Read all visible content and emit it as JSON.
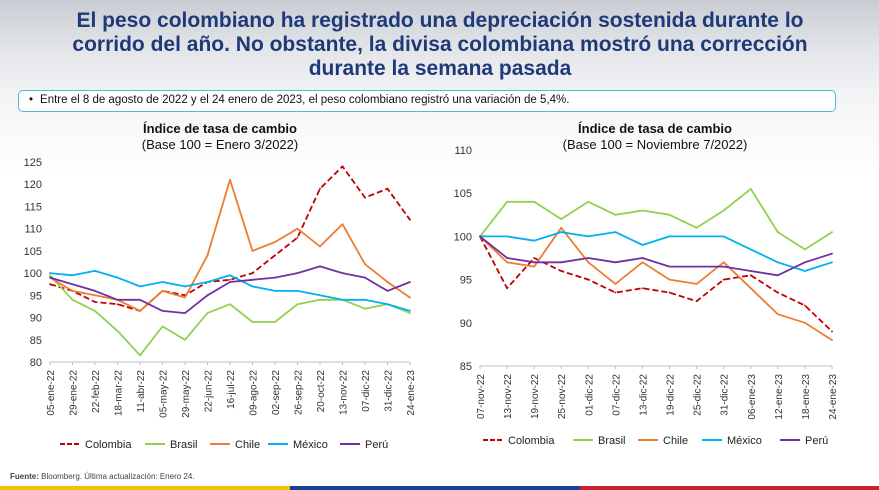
{
  "slide": {
    "headline": "El peso colombiano ha registrado una depreciación sostenida durante lo corrido del año. No obstante, la divisa colombiana mostró una corrección durante la semana pasada",
    "callout": "Entre el 8 de agosto de 2022 y el 24 enero de 2023, el peso colombiano registró una variación de 5,4%.",
    "footer_label": "Fuente:",
    "footer_text": "Bloomberg. Última actualización: Enero 24.",
    "colors": {
      "headline": "#1f3a78",
      "callout_border": "#56b7d6",
      "stripe_yellow": "#f2c200",
      "stripe_blue": "#1d3f8f",
      "stripe_red": "#cc1f2d"
    }
  },
  "chart_data": [
    {
      "type": "line",
      "title": "Índice de tasa de cambio",
      "subtitle": "(Base 100 = Enero 3/2022)",
      "ylim": [
        80,
        125
      ],
      "yticks": [
        80,
        85,
        90,
        95,
        100,
        105,
        110,
        115,
        120,
        125
      ],
      "categories": [
        "05-ene-22",
        "29-ene-22",
        "22-feb-22",
        "18-mar-22",
        "11-abr-22",
        "05-may-22",
        "29-may-22",
        "22-jun-22",
        "16-jul-22",
        "09-ago-22",
        "02-sep-22",
        "26-sep-22",
        "20-oct-22",
        "13-nov-22",
        "07-dic-22",
        "31-dic-22",
        "24-ene-23"
      ],
      "legend": [
        "Colombia",
        "Brasil",
        "Chile",
        "México",
        "Perú"
      ],
      "series": [
        {
          "name": "Colombia",
          "color": "#c00000",
          "dash": "6,3",
          "values": [
            97.5,
            96,
            93.5,
            93,
            91.5,
            96,
            95,
            98,
            98.5,
            100,
            104,
            108,
            119,
            124,
            117,
            119,
            112
          ]
        },
        {
          "name": "Brasil",
          "color": "#92d050",
          "dash": "",
          "values": [
            99.5,
            94,
            91.5,
            87,
            81.5,
            88,
            85,
            91,
            93,
            89,
            89,
            93,
            94,
            94,
            92,
            93,
            91
          ]
        },
        {
          "name": "Chile",
          "color": "#ed7d31",
          "dash": "",
          "values": [
            99,
            96,
            95,
            94,
            91.5,
            96,
            94.5,
            104,
            121,
            105,
            107,
            110,
            106,
            111,
            102,
            98,
            94.5
          ]
        },
        {
          "name": "México",
          "color": "#00b0f0",
          "dash": "",
          "values": [
            100,
            99.5,
            100.5,
            99,
            97,
            98,
            97,
            98,
            99.5,
            97,
            96,
            96,
            95,
            94,
            94,
            93,
            91.5
          ]
        },
        {
          "name": "Perú",
          "color": "#7030a0",
          "dash": "",
          "values": [
            99,
            97.5,
            96,
            94,
            94,
            91.5,
            91,
            95,
            98,
            98.5,
            99,
            100,
            101.5,
            100,
            99,
            96,
            98
          ]
        }
      ]
    },
    {
      "type": "line",
      "title": "Índice de tasa de cambio",
      "subtitle": "(Base 100 = Noviembre 7/2022)",
      "ylim": [
        85,
        110
      ],
      "yticks": [
        85,
        90,
        95,
        100,
        105,
        110
      ],
      "categories": [
        "07-nov-22",
        "13-nov-22",
        "19-nov-22",
        "25-nov-22",
        "01-dic-22",
        "07-dic-22",
        "13-dic-22",
        "19-dic-22",
        "25-dic-22",
        "31-dic-22",
        "06-ene-23",
        "12-ene-23",
        "18-ene-23",
        "24-ene-23"
      ],
      "legend": [
        "Colombia",
        "Brasil",
        "Chile",
        "México",
        "Perú"
      ],
      "series": [
        {
          "name": "Colombia",
          "color": "#c00000",
          "dash": "6,3",
          "values": [
            100,
            94,
            97.5,
            96,
            95,
            93.5,
            94,
            93.5,
            92.5,
            95,
            95.5,
            93.5,
            92,
            89
          ]
        },
        {
          "name": "Brasil",
          "color": "#92d050",
          "dash": "",
          "values": [
            100,
            104,
            104,
            102,
            104,
            102.5,
            103,
            102.5,
            101,
            103,
            105.5,
            100.5,
            98.5,
            100.5
          ]
        },
        {
          "name": "Chile",
          "color": "#ed7d31",
          "dash": "",
          "values": [
            100,
            97,
            96.5,
            101,
            97,
            94.5,
            97,
            95,
            94.5,
            97,
            94,
            91,
            90,
            88
          ]
        },
        {
          "name": "México",
          "color": "#00b0f0",
          "dash": "",
          "values": [
            100,
            100,
            99.5,
            100.5,
            100,
            100.5,
            99,
            100,
            100,
            100,
            98.5,
            97,
            96,
            97
          ]
        },
        {
          "name": "Perú",
          "color": "#7030a0",
          "dash": "",
          "values": [
            100,
            97.5,
            97,
            97,
            97.5,
            97,
            97.5,
            96.5,
            96.5,
            96.5,
            96,
            95.5,
            97,
            98
          ]
        }
      ]
    }
  ]
}
